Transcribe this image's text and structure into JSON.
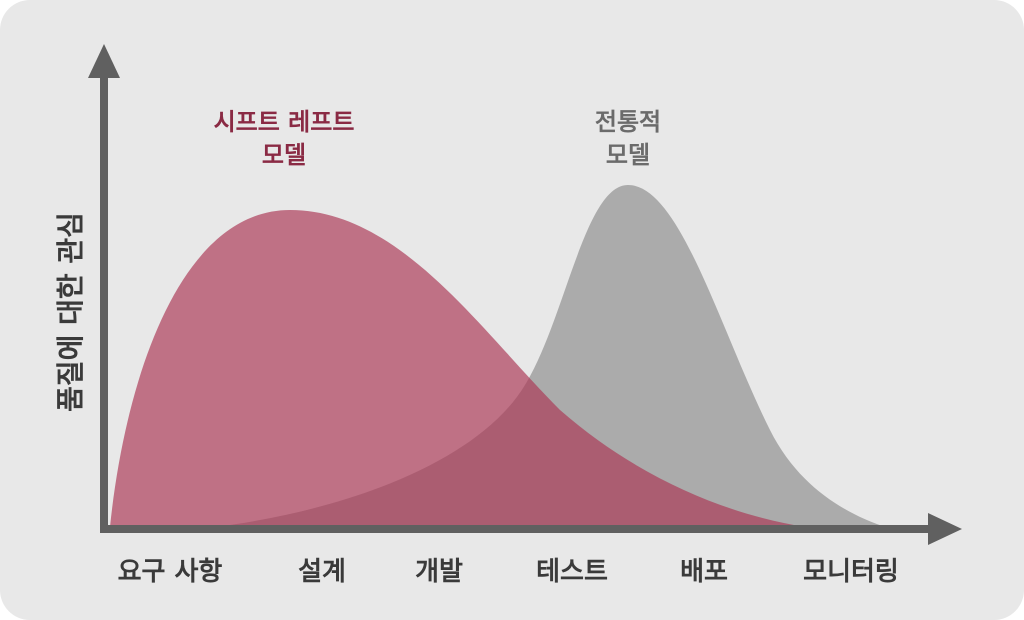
{
  "diagram": {
    "y_axis_label": "품질에 대한 관심",
    "x_stages": [
      "요구 사항",
      "설계",
      "개발",
      "테스트",
      "배포",
      "모니터링"
    ],
    "curves": [
      {
        "id": "shift-left",
        "label_lines": [
          "시프트 레프트",
          "모델"
        ],
        "color": "#ab3856",
        "label_color": "#8a2a44",
        "opacity": 0.68
      },
      {
        "id": "traditional",
        "label_lines": [
          "전통적",
          "모델"
        ],
        "color": "#8e8e8e",
        "label_color": "#6b6b6b",
        "opacity": 0.68
      }
    ],
    "colors": {
      "background": "#e8e8e8",
      "axis": "#606060",
      "text": "#3a3a3a"
    }
  }
}
